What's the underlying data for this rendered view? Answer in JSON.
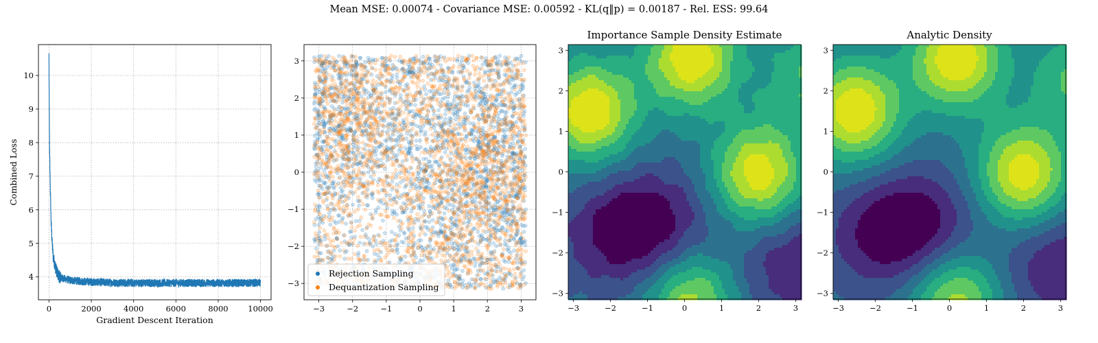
{
  "suptitle": "Mean MSE: 0.00074 - Covariance MSE: 0.00592 - KL(q‖p) = 0.00187 - Rel. ESS: 99.64",
  "colors": {
    "blue": "#1f77b4",
    "orange": "#ff7f0e",
    "viridis_levels": [
      "#440154",
      "#472d7b",
      "#3b528b",
      "#2c728e",
      "#21918c",
      "#28ae80",
      "#5ec962",
      "#addc30",
      "#dde318"
    ]
  },
  "chart_data": [
    {
      "type": "line",
      "title": "",
      "xlabel": "Gradient Descent Iteration",
      "ylabel": "Combined Loss",
      "xlim": [
        -500,
        10500
      ],
      "ylim": [
        3.32,
        10.92
      ],
      "xticks": [
        0,
        2000,
        4000,
        6000,
        8000,
        10000
      ],
      "yticks": [
        4,
        5,
        6,
        7,
        8,
        9,
        10
      ],
      "grid": true,
      "series": [
        {
          "color": "#1f77b4",
          "x": [
            0,
            10,
            25,
            50,
            75,
            100,
            150,
            200,
            300,
            400,
            500,
            700,
            1000,
            1500,
            2000,
            3000,
            4000,
            5000,
            6000,
            7000,
            8000,
            9000,
            10000
          ],
          "y": [
            10.6,
            9.0,
            7.8,
            7.0,
            6.3,
            5.6,
            5.0,
            4.6,
            4.3,
            4.1,
            4.0,
            3.95,
            3.9,
            3.87,
            3.85,
            3.83,
            3.82,
            3.82,
            3.82,
            3.82,
            3.82,
            3.82,
            3.82
          ],
          "noise_band": 0.12
        }
      ]
    },
    {
      "type": "scatter",
      "title": "",
      "xlim": [
        -3.44,
        3.44
      ],
      "ylim": [
        -3.44,
        3.44
      ],
      "xticks": [
        -3,
        -2,
        -1,
        0,
        1,
        2,
        3
      ],
      "yticks": [
        -3,
        -2,
        -1,
        0,
        1,
        2,
        3
      ],
      "grid": true,
      "legend": "lower-left",
      "series": [
        {
          "name": "Rejection Sampling",
          "color": "#1f77b4",
          "domain": [
            -3.14,
            3.14
          ]
        },
        {
          "name": "Dequantization Sampling",
          "color": "#ff7f0e",
          "domain": [
            -3.14,
            3.14
          ]
        }
      ]
    },
    {
      "type": "heatmap",
      "title": "Importance Sample Density Estimate",
      "xlim": [
        -3.14,
        3.14
      ],
      "ylim": [
        -3.14,
        3.14
      ],
      "xticks": [
        -3,
        -2,
        -1,
        0,
        1,
        2,
        3
      ],
      "yticks": [
        -3,
        -2,
        -1,
        0,
        1,
        2,
        3
      ],
      "colormap": "viridis",
      "levels": 9,
      "peaks": [
        {
          "x": 0.2,
          "y": 2.8,
          "height": 1.0
        },
        {
          "x": -2.55,
          "y": 1.5,
          "height": 1.0
        },
        {
          "x": 2.0,
          "y": -0.05,
          "height": 0.95
        },
        {
          "x": 0.2,
          "y": -3.2,
          "height": 0.75
        },
        {
          "x": 3.4,
          "y": 2.3,
          "height": 0.5
        }
      ],
      "valleys": [
        {
          "x": -1.3,
          "y": -1.4,
          "depth": 1.0
        },
        {
          "x": 3.1,
          "y": -2.3,
          "depth": 0.6
        }
      ]
    },
    {
      "type": "heatmap",
      "title": "Analytic Density",
      "xlim": [
        -3.14,
        3.14
      ],
      "ylim": [
        -3.14,
        3.14
      ],
      "xticks": [
        -3,
        -2,
        -1,
        0,
        1,
        2,
        3
      ],
      "yticks": [
        -3,
        -2,
        -1,
        0,
        1,
        2,
        3
      ],
      "colormap": "viridis",
      "levels": 9,
      "peaks": [
        {
          "x": 0.2,
          "y": 2.8,
          "height": 1.0
        },
        {
          "x": -2.55,
          "y": 1.5,
          "height": 1.0
        },
        {
          "x": 2.0,
          "y": -0.05,
          "height": 0.95
        },
        {
          "x": 0.2,
          "y": -3.2,
          "height": 0.75
        },
        {
          "x": 3.4,
          "y": 2.3,
          "height": 0.5
        }
      ],
      "valleys": [
        {
          "x": -1.3,
          "y": -1.4,
          "depth": 1.0
        },
        {
          "x": 3.1,
          "y": -2.3,
          "depth": 0.6
        }
      ]
    }
  ]
}
